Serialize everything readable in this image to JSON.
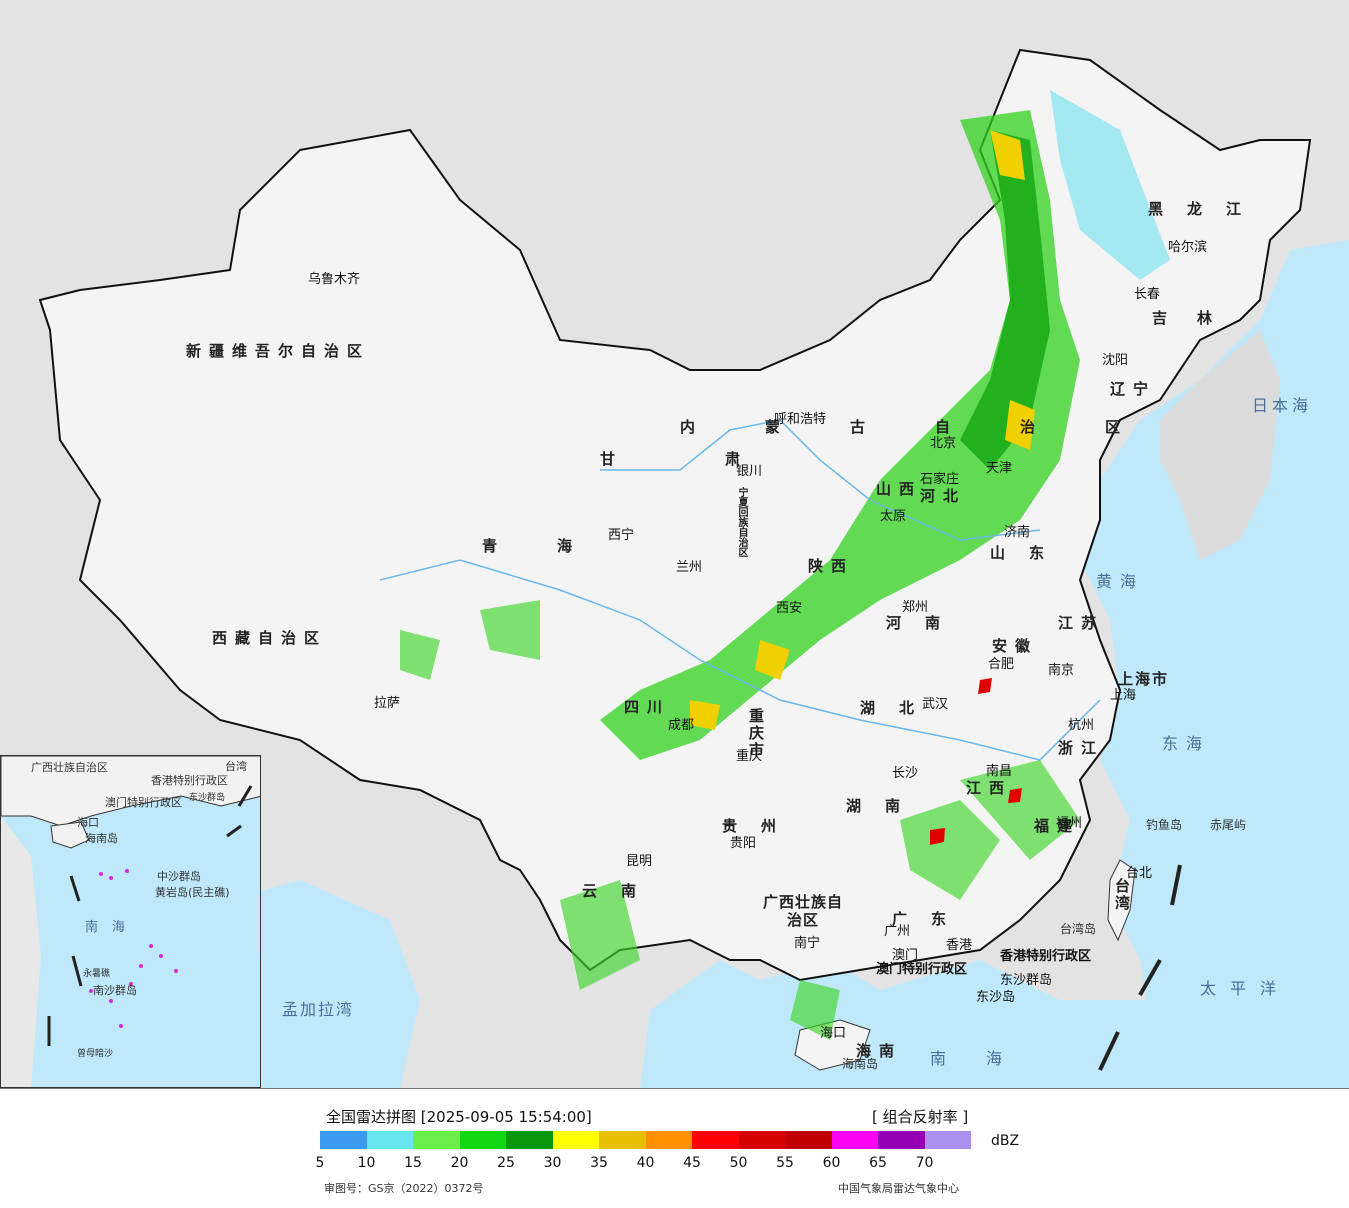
{
  "map": {
    "provinces": [
      {
        "name": "新疆维吾尔自治区"
      },
      {
        "name": "西藏自治区"
      },
      {
        "name": "青海"
      },
      {
        "name": "甘肃"
      },
      {
        "name": "内蒙古自治区"
      },
      {
        "name": "黑龙江"
      },
      {
        "name": "吉林"
      },
      {
        "name": "辽宁"
      },
      {
        "name": "山东"
      },
      {
        "name": "江苏"
      },
      {
        "name": "安徽"
      },
      {
        "name": "浙江"
      },
      {
        "name": "福建"
      },
      {
        "name": "江西"
      },
      {
        "name": "湖南"
      },
      {
        "name": "湖北"
      },
      {
        "name": "河南"
      },
      {
        "name": "河北"
      },
      {
        "name": "山西"
      },
      {
        "name": "陕西"
      },
      {
        "name": "四川"
      },
      {
        "name": "重庆市"
      },
      {
        "name": "贵州"
      },
      {
        "name": "云南"
      },
      {
        "name": "广西壮族自治区"
      },
      {
        "name": "广东"
      },
      {
        "name": "海南"
      },
      {
        "name": "上海市"
      },
      {
        "name": "台湾"
      },
      {
        "name": "宁夏回族自治区"
      }
    ],
    "cities": [
      "乌鲁木齐",
      "拉萨",
      "西宁",
      "兰州",
      "银川",
      "呼和浩特",
      "北京",
      "天津",
      "石家庄",
      "太原",
      "济南",
      "郑州",
      "西安",
      "成都",
      "重庆",
      "武汉",
      "合肥",
      "南京",
      "上海",
      "杭州",
      "长沙",
      "南昌",
      "福州",
      "台北",
      "贵阳",
      "昆明",
      "南宁",
      "广州",
      "香港",
      "澳门",
      "海口",
      "沈阳",
      "长春",
      "哈尔滨"
    ],
    "seas": [
      "黄海",
      "东海",
      "日本海",
      "太平洋",
      "南海",
      "孟加拉湾"
    ],
    "other": [
      "香港特别行政区",
      "澳门特别行政区",
      "东沙群岛",
      "东沙岛",
      "钓鱼岛",
      "赤尾屿",
      "台湾岛",
      "海南岛"
    ],
    "inset_labels": [
      "广西壮族自治区",
      "香港特别行政区",
      "澳门特别行政区",
      "海口",
      "海南岛",
      "中沙群岛",
      "黄岩岛(民主礁)",
      "南海",
      "永暑礁",
      "南沙群岛",
      "曾母暗沙",
      "台湾",
      "东沙群岛"
    ]
  },
  "legend": {
    "title": "全国雷达拼图 [2025-09-05 15:54:00]",
    "product": "[ 组合反射率 ]",
    "unit": "dBZ",
    "colors": [
      "#3b99ee",
      "#66e5ee",
      "#6aef4a",
      "#11d611",
      "#0a990a",
      "#ffff00",
      "#e6c000",
      "#ff9000",
      "#ff0000",
      "#d60000",
      "#c00000",
      "#ff00f0",
      "#9600b4",
      "#aa90ee"
    ],
    "ticks": [
      "5",
      "10",
      "15",
      "20",
      "25",
      "30",
      "35",
      "40",
      "45",
      "50",
      "55",
      "60",
      "65",
      "70"
    ],
    "review_no": "审图号：GS京（2022）0372号",
    "credit": "中国气象局雷达气象中心"
  }
}
